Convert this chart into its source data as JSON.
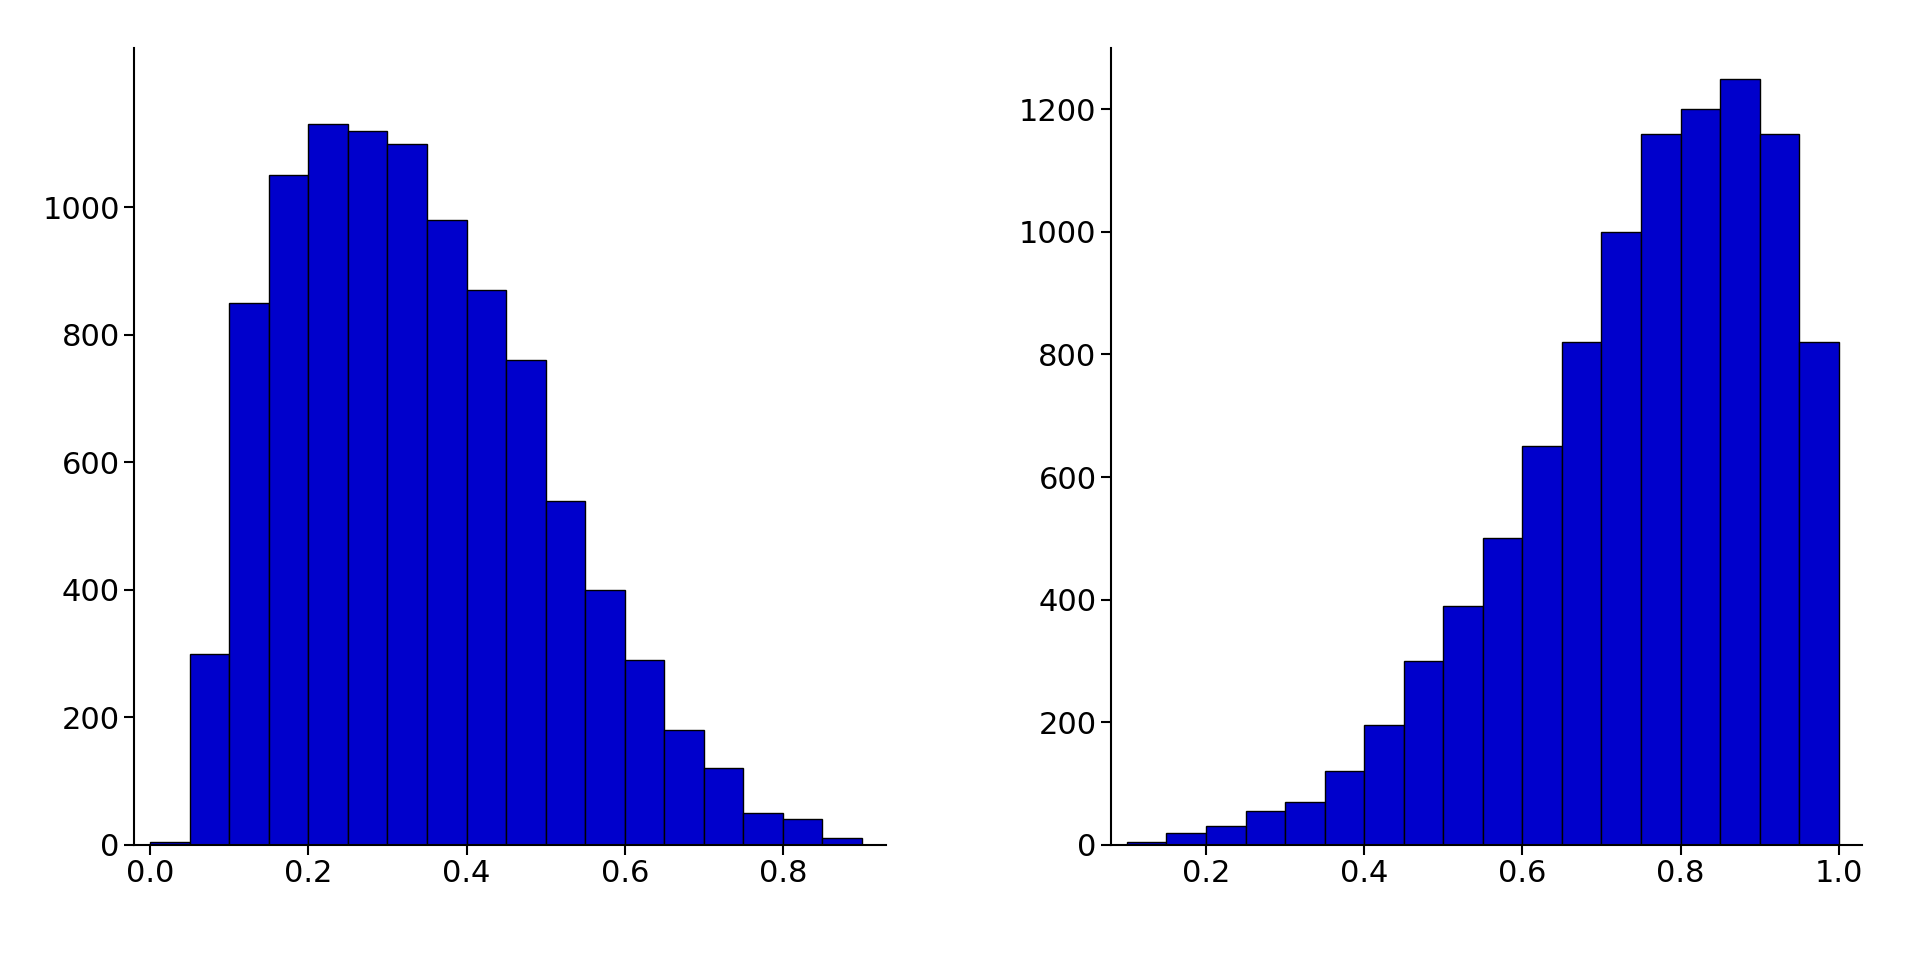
{
  "left": {
    "bin_edges": [
      0.0,
      0.05,
      0.1,
      0.15,
      0.2,
      0.25,
      0.3,
      0.35,
      0.4,
      0.45,
      0.5,
      0.55,
      0.6,
      0.65,
      0.7,
      0.75,
      0.8,
      0.85,
      0.9
    ],
    "counts": [
      5,
      300,
      850,
      1050,
      1130,
      1120,
      1100,
      980,
      870,
      760,
      540,
      400,
      290,
      180,
      120,
      50,
      40,
      10
    ],
    "xlim": [
      -0.02,
      0.93
    ],
    "ylim": [
      0,
      1250
    ],
    "xticks": [
      0.0,
      0.2,
      0.4,
      0.6,
      0.8
    ],
    "yticks": [
      0,
      200,
      400,
      600,
      800,
      1000
    ]
  },
  "right": {
    "bin_edges": [
      0.1,
      0.15,
      0.2,
      0.25,
      0.3,
      0.35,
      0.4,
      0.45,
      0.5,
      0.55,
      0.6,
      0.65,
      0.7,
      0.75,
      0.8,
      0.85,
      0.9,
      0.95,
      1.0
    ],
    "counts": [
      5,
      20,
      30,
      55,
      70,
      120,
      195,
      300,
      390,
      500,
      650,
      820,
      1000,
      1160,
      1200,
      1250,
      1160,
      820
    ],
    "xlim": [
      0.08,
      1.03
    ],
    "ylim": [
      0,
      1300
    ],
    "xticks": [
      0.2,
      0.4,
      0.6,
      0.8,
      1.0
    ],
    "yticks": [
      0,
      200,
      400,
      600,
      800,
      1000,
      1200
    ]
  },
  "bar_color": "#0000CC",
  "edge_color": "black",
  "bg_color": "white",
  "tick_fontsize": 22,
  "edge_linewidth": 1.0
}
